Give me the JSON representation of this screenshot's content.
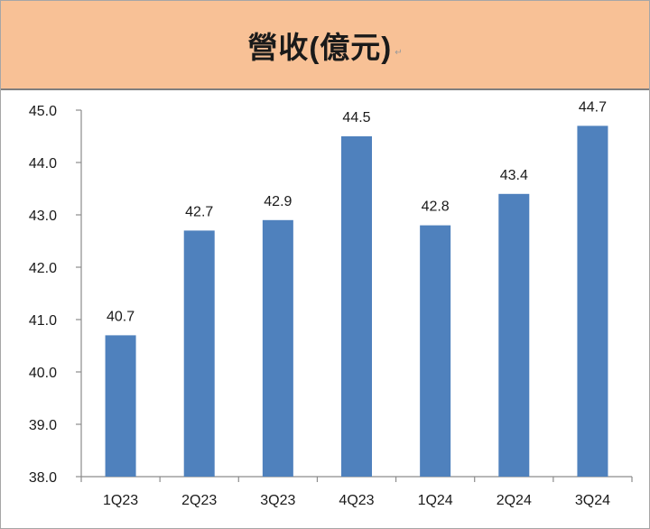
{
  "title": "營收(億元)",
  "title_mark": "↵",
  "colors": {
    "bar": "#4f81bd",
    "header_bg": "#f8c196",
    "axis": "#8c8c8c"
  },
  "chart_data": {
    "type": "bar",
    "title": "營收(億元)",
    "xlabel": "",
    "ylabel": "",
    "categories": [
      "1Q23",
      "2Q23",
      "3Q23",
      "4Q23",
      "1Q24",
      "2Q24",
      "3Q24"
    ],
    "values": [
      40.7,
      42.7,
      42.9,
      44.5,
      42.8,
      43.4,
      44.7
    ],
    "data_labels": [
      "40.7",
      "42.7",
      "42.9",
      "44.5",
      "42.8",
      "43.4",
      "44.7"
    ],
    "ylim": [
      38.0,
      45.0
    ],
    "y_ticks": [
      "38.0",
      "39.0",
      "40.0",
      "41.0",
      "42.0",
      "43.0",
      "44.0",
      "45.0"
    ],
    "y_tick_values": [
      38,
      39,
      40,
      41,
      42,
      43,
      44,
      45
    ],
    "grid": false,
    "legend": "none"
  }
}
